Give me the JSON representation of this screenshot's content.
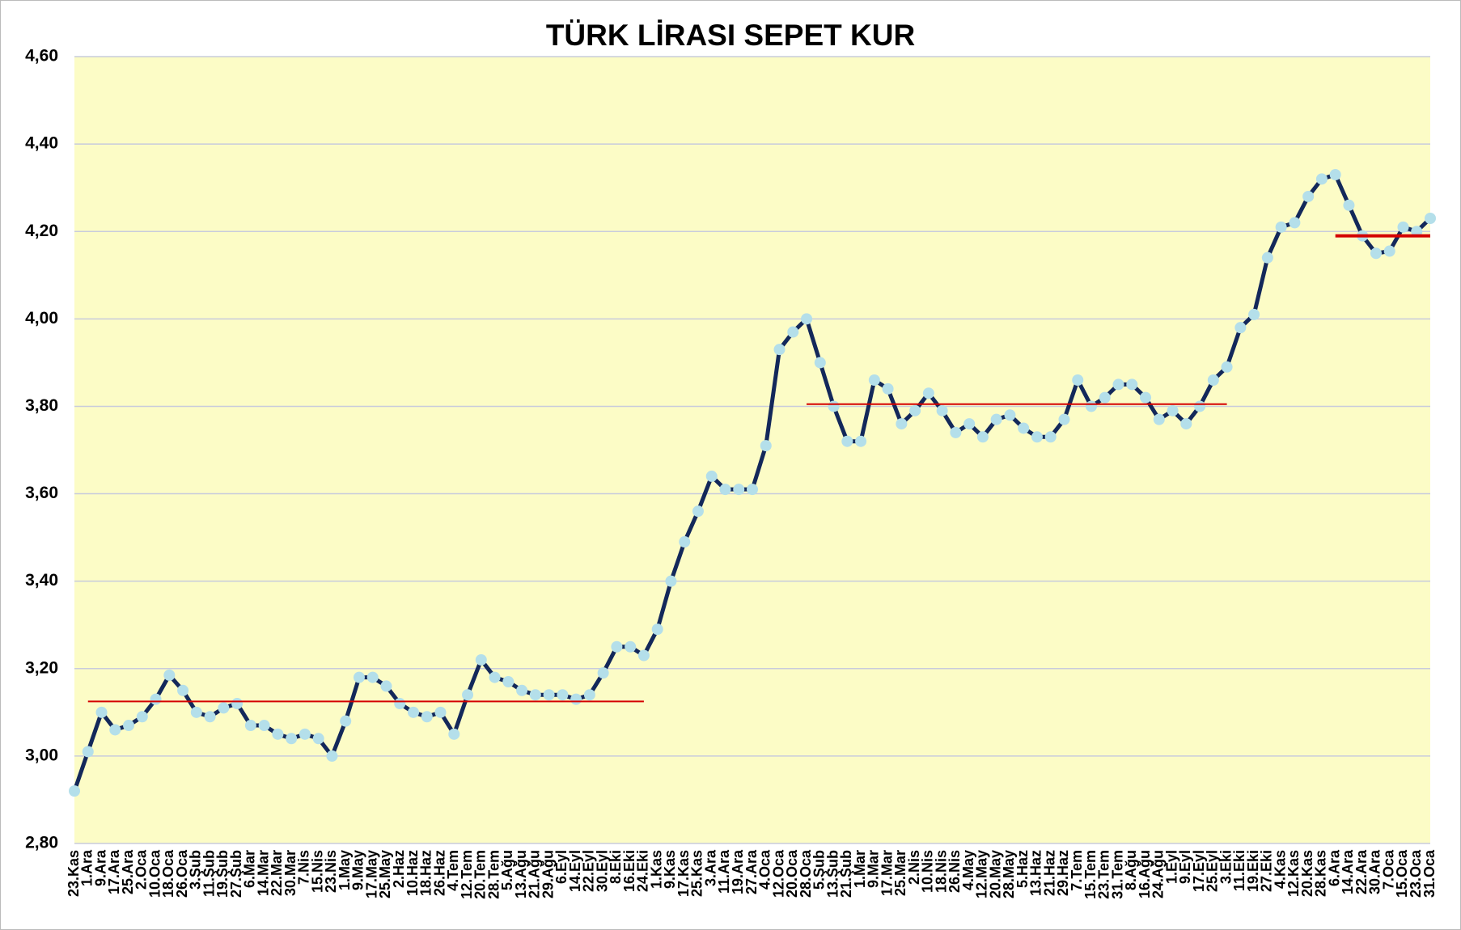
{
  "chart_data": {
    "type": "line",
    "title": "TÜRK LİRASI SEPET KUR",
    "categories": [
      "23.Kas",
      "1.Ara",
      "9.Ara",
      "17.Ara",
      "25.Ara",
      "2.Oca",
      "10.Oca",
      "18.Oca",
      "26.Oca",
      "3.Şub",
      "11.Şub",
      "19.Şub",
      "27.Şub",
      "6.Mar",
      "14.Mar",
      "22.Mar",
      "30.Mar",
      "7.Nis",
      "15.Nis",
      "23.Nis",
      "1.May",
      "9.May",
      "17.May",
      "25.May",
      "2.Haz",
      "10.Haz",
      "18.Haz",
      "26.Haz",
      "4.Tem",
      "12.Tem",
      "20.Tem",
      "28.Tem",
      "5.Ağu",
      "13.Ağu",
      "21.Ağu",
      "29.Ağu",
      "6.Eyl",
      "14.Eyl",
      "22.Eyl",
      "30.Eyl",
      "8.Eki",
      "16.Eki",
      "24.Eki",
      "1.Kas",
      "9.Kas",
      "17.Kas",
      "25.Kas",
      "3.Ara",
      "11.Ara",
      "19.Ara",
      "27.Ara",
      "4.Oca",
      "12.Oca",
      "20.Oca",
      "28.Oca",
      "5.Şub",
      "13.Şub",
      "21.Şub",
      "1.Mar",
      "9.Mar",
      "17.Mar",
      "25.Mar",
      "2.Nis",
      "10.Nis",
      "18.Nis",
      "26.Nis",
      "4.May",
      "12.May",
      "20.May",
      "28.May",
      "5.Haz",
      "13.Haz",
      "21.Haz",
      "29.Haz",
      "7.Tem",
      "15.Tem",
      "23.Tem",
      "31.Tem",
      "8.Ağu",
      "16.Ağu",
      "24.Ağu",
      "1.Eyl",
      "9.Eyl",
      "17.Eyl",
      "25.Eyl",
      "3.Eki",
      "11.Eki",
      "19.Eki",
      "27.Eki",
      "4.Kas",
      "12.Kas",
      "20.Kas",
      "28.Kas",
      "6.Ara",
      "14.Ara",
      "22.Ara",
      "30.Ara",
      "7.Oca",
      "15.Oca",
      "23.Oca",
      "31.Oca"
    ],
    "series": [
      {
        "color": "#13285a",
        "marker_color": "#b4dfea",
        "markers": true,
        "values": [
          2.92,
          3.01,
          3.1,
          3.06,
          3.07,
          3.09,
          3.13,
          3.185,
          3.15,
          3.1,
          3.09,
          3.11,
          3.12,
          3.07,
          3.07,
          3.05,
          3.04,
          3.05,
          3.04,
          3.0,
          3.08,
          3.18,
          3.18,
          3.16,
          3.12,
          3.1,
          3.09,
          3.1,
          3.05,
          3.14,
          3.22,
          3.18,
          3.17,
          3.15,
          3.14,
          3.14,
          3.14,
          3.13,
          3.14,
          3.19,
          3.25,
          3.25,
          3.23,
          3.29,
          3.4,
          3.49,
          3.56,
          3.64,
          3.61,
          3.61,
          3.61,
          3.71,
          3.93,
          3.97,
          4.0,
          3.9,
          3.8,
          3.72,
          3.72,
          3.86,
          3.84,
          3.76,
          3.79,
          3.83,
          3.79,
          3.74,
          3.76,
          3.73,
          3.77,
          3.78,
          3.75,
          3.73,
          3.73,
          3.77,
          3.86,
          3.8,
          3.82,
          3.85,
          3.85,
          3.82,
          3.77,
          3.79,
          3.76,
          3.8,
          3.86,
          3.89,
          3.98,
          4.01,
          4.14,
          4.21,
          4.22,
          4.28,
          4.32,
          4.33,
          4.26,
          4.19,
          4.15,
          4.155,
          4.21,
          4.2,
          4.23
        ]
      },
      {
        "color": "#d40000",
        "markers": false,
        "values": [
          null,
          3.125,
          3.125,
          3.125,
          3.125,
          3.125,
          3.125,
          3.125,
          3.125,
          3.125,
          3.125,
          3.125,
          3.125,
          3.125,
          3.125,
          3.125,
          3.125,
          3.125,
          3.125,
          3.125,
          3.125,
          3.125,
          3.125,
          3.125,
          3.125,
          3.125,
          3.125,
          3.125,
          3.125,
          3.125,
          3.125,
          3.125,
          3.125,
          3.125,
          3.125,
          3.125,
          3.125,
          3.125,
          3.125,
          3.125,
          3.125,
          3.125,
          3.125,
          null,
          null,
          null,
          null,
          null,
          null,
          null,
          null,
          null,
          null,
          null,
          null,
          null,
          null,
          null,
          null,
          null,
          null,
          null,
          null,
          null,
          null,
          null,
          null,
          null,
          null,
          null,
          null,
          null,
          null,
          null,
          null,
          null,
          null,
          null,
          null,
          null,
          null,
          null,
          null,
          null,
          null,
          null,
          null,
          null,
          null,
          null,
          null,
          null,
          null,
          null,
          null,
          null,
          null,
          null,
          null,
          null,
          null
        ]
      },
      {
        "color": "#d40000",
        "markers": false,
        "values": [
          null,
          null,
          null,
          null,
          null,
          null,
          null,
          null,
          null,
          null,
          null,
          null,
          null,
          null,
          null,
          null,
          null,
          null,
          null,
          null,
          null,
          null,
          null,
          null,
          null,
          null,
          null,
          null,
          null,
          null,
          null,
          null,
          null,
          null,
          null,
          null,
          null,
          null,
          null,
          null,
          null,
          null,
          null,
          null,
          null,
          null,
          null,
          null,
          null,
          null,
          null,
          null,
          null,
          null,
          3.805,
          3.805,
          3.805,
          3.805,
          3.805,
          3.805,
          3.805,
          3.805,
          3.805,
          3.805,
          3.805,
          3.805,
          3.805,
          3.805,
          3.805,
          3.805,
          3.805,
          3.805,
          3.805,
          3.805,
          3.805,
          3.805,
          3.805,
          3.805,
          3.805,
          3.805,
          3.805,
          3.805,
          3.805,
          3.805,
          3.805,
          3.805,
          null,
          null,
          null,
          null,
          null,
          null,
          null,
          null,
          null,
          null,
          null,
          null,
          null,
          null,
          null
        ]
      },
      {
        "color": "#d40000",
        "markers": false,
        "thick": true,
        "values": [
          null,
          null,
          null,
          null,
          null,
          null,
          null,
          null,
          null,
          null,
          null,
          null,
          null,
          null,
          null,
          null,
          null,
          null,
          null,
          null,
          null,
          null,
          null,
          null,
          null,
          null,
          null,
          null,
          null,
          null,
          null,
          null,
          null,
          null,
          null,
          null,
          null,
          null,
          null,
          null,
          null,
          null,
          null,
          null,
          null,
          null,
          null,
          null,
          null,
          null,
          null,
          null,
          null,
          null,
          null,
          null,
          null,
          null,
          null,
          null,
          null,
          null,
          null,
          null,
          null,
          null,
          null,
          null,
          null,
          null,
          null,
          null,
          null,
          null,
          null,
          null,
          null,
          null,
          null,
          null,
          null,
          null,
          null,
          null,
          null,
          null,
          null,
          null,
          null,
          null,
          null,
          null,
          null,
          4.19,
          4.19,
          4.19,
          4.19,
          4.19,
          4.19,
          4.19,
          4.19
        ]
      }
    ],
    "ylim": [
      2.8,
      4.6
    ],
    "yticks": [
      {
        "value": 2.8,
        "label": "2,80"
      },
      {
        "value": 3.0,
        "label": "3,00"
      },
      {
        "value": 3.2,
        "label": "3,20"
      },
      {
        "value": 3.4,
        "label": "3,40"
      },
      {
        "value": 3.6,
        "label": "3,60"
      },
      {
        "value": 3.8,
        "label": "3,80"
      },
      {
        "value": 4.0,
        "label": "4,00"
      },
      {
        "value": 4.2,
        "label": "4,20"
      },
      {
        "value": 4.4,
        "label": "4,40"
      },
      {
        "value": 4.6,
        "label": "4,60"
      }
    ],
    "grid": true,
    "plot_background": "#fcfcc6"
  }
}
